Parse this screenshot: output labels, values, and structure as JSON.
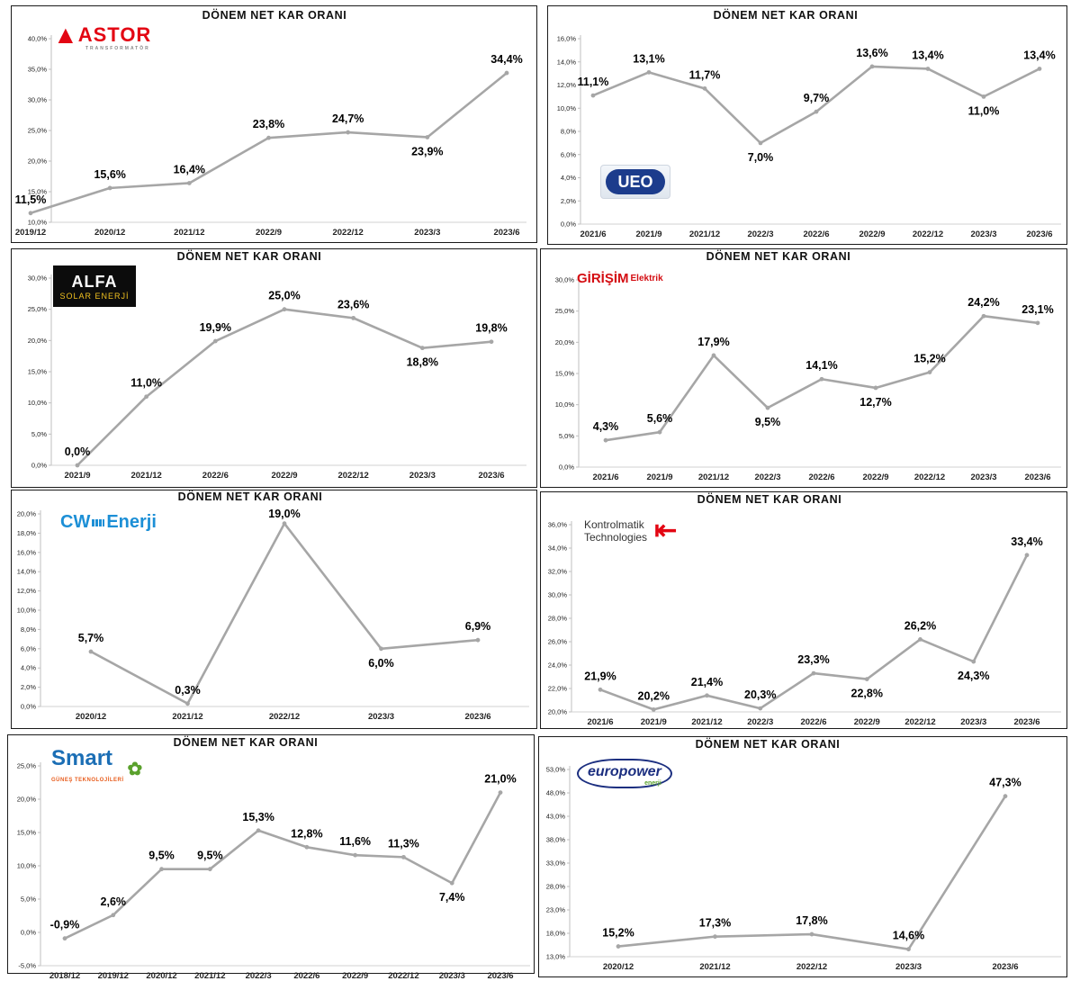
{
  "chart_data": [
    {
      "type": "line",
      "title": "DÖNEM NET KAR ORANI",
      "logo": "ASTOR",
      "logo_sub": "TRANSFORMATÖR",
      "categories": [
        "2019/12",
        "2020/12",
        "2021/12",
        "2022/9",
        "2022/12",
        "2023/3",
        "2023/6"
      ],
      "values": [
        11.5,
        15.6,
        16.4,
        23.8,
        24.7,
        23.9,
        34.4
      ],
      "labels": [
        "11,5%",
        "15,6%",
        "16,4%",
        "23,8%",
        "24,7%",
        "23,9%",
        "34,4%"
      ],
      "yticks": [
        "10,0%",
        "15,0%",
        "20,0%",
        "25,0%",
        "30,0%",
        "35,0%",
        "40,0%"
      ],
      "ylim": [
        10,
        40
      ],
      "line_color": "#a6a6a6"
    },
    {
      "type": "line",
      "title": "DÖNEM NET KAR ORANI",
      "logo": "UEO",
      "categories": [
        "2021/6",
        "2021/9",
        "2021/12",
        "2022/3",
        "2022/6",
        "2022/9",
        "2022/12",
        "2023/3",
        "2023/6"
      ],
      "values": [
        11.1,
        13.1,
        11.7,
        7.0,
        9.7,
        13.6,
        13.4,
        11.0,
        13.4
      ],
      "labels": [
        "11,1%",
        "13,1%",
        "11,7%",
        "7,0%",
        "9,7%",
        "13,6%",
        "13,4%",
        "11,0%",
        "13,4%"
      ],
      "yticks": [
        "0,0%",
        "2,0%",
        "4,0%",
        "6,0%",
        "8,0%",
        "10,0%",
        "12,0%",
        "14,0%",
        "16,0%"
      ],
      "ylim": [
        0,
        16
      ],
      "line_color": "#a6a6a6"
    },
    {
      "type": "line",
      "title": "DÖNEM NET KAR ORANI",
      "logo": "ALFA",
      "logo_sub": "SOLAR ENERJİ",
      "categories": [
        "2021/9",
        "2021/12",
        "2022/6",
        "2022/9",
        "2022/12",
        "2023/3",
        "2023/6"
      ],
      "values": [
        0.0,
        11.0,
        19.9,
        25.0,
        23.6,
        18.8,
        19.8
      ],
      "labels": [
        "0,0%",
        "11,0%",
        "19,9%",
        "25,0%",
        "23,6%",
        "18,8%",
        "19,8%"
      ],
      "yticks": [
        "0,0%",
        "5,0%",
        "10,0%",
        "15,0%",
        "20,0%",
        "25,0%",
        "30,0%"
      ],
      "ylim": [
        0,
        30
      ],
      "line_color": "#a6a6a6"
    },
    {
      "type": "line",
      "title": "DÖNEM NET KAR ORANI",
      "logo": "GİRİŞİM",
      "logo_sub": "Elektrik",
      "categories": [
        "2021/6",
        "2021/9",
        "2021/12",
        "2022/3",
        "2022/6",
        "2022/9",
        "2022/12",
        "2023/3",
        "2023/6"
      ],
      "values": [
        4.3,
        5.6,
        17.9,
        9.5,
        14.1,
        12.7,
        15.2,
        24.2,
        23.1
      ],
      "labels": [
        "4,3%",
        "5,6%",
        "17,9%",
        "9,5%",
        "14,1%",
        "12,7%",
        "15,2%",
        "24,2%",
        "23,1%"
      ],
      "yticks": [
        "0,0%",
        "5,0%",
        "10,0%",
        "15,0%",
        "20,0%",
        "25,0%",
        "30,0%"
      ],
      "ylim": [
        0,
        30
      ],
      "line_color": "#a6a6a6"
    },
    {
      "type": "line",
      "title": "DÖNEM NET KAR ORANI",
      "logo": "CW",
      "logo_sub": "Enerji",
      "categories": [
        "2020/12",
        "2021/12",
        "2022/12",
        "2023/3",
        "2023/6"
      ],
      "values": [
        5.7,
        0.3,
        19.0,
        6.0,
        6.9
      ],
      "labels": [
        "5,7%",
        "0,3%",
        "19,0%",
        "6,0%",
        "6,9%"
      ],
      "yticks": [
        "0,0%",
        "2,0%",
        "4,0%",
        "6,0%",
        "8,0%",
        "10,0%",
        "12,0%",
        "14,0%",
        "16,0%",
        "18,0%",
        "20,0%"
      ],
      "ylim": [
        0,
        20
      ],
      "line_color": "#a6a6a6"
    },
    {
      "type": "line",
      "title": "DÖNEM NET KAR ORANI",
      "logo": "Kontrolmatik",
      "logo_sub": "Technologies",
      "categories": [
        "2021/6",
        "2021/9",
        "2021/12",
        "2022/3",
        "2022/6",
        "2022/9",
        "2022/12",
        "2023/3",
        "2023/6"
      ],
      "values": [
        21.9,
        20.2,
        21.4,
        20.3,
        23.3,
        22.8,
        26.2,
        24.3,
        33.4
      ],
      "labels": [
        "21,9%",
        "20,2%",
        "21,4%",
        "20,3%",
        "23,3%",
        "22,8%",
        "26,2%",
        "24,3%",
        "33,4%"
      ],
      "yticks": [
        "20,0%",
        "22,0%",
        "24,0%",
        "26,0%",
        "28,0%",
        "30,0%",
        "32,0%",
        "34,0%",
        "36,0%"
      ],
      "ylim": [
        20,
        36
      ],
      "line_color": "#a6a6a6"
    },
    {
      "type": "line",
      "title": "DÖNEM NET KAR ORANI",
      "logo": "Smart",
      "logo_sub": "GÜNEŞ TEKNOLOJİLERİ",
      "categories": [
        "2018/12",
        "2019/12",
        "2020/12",
        "2021/12",
        "2022/3",
        "2022/6",
        "2022/9",
        "2022/12",
        "2023/3",
        "2023/6"
      ],
      "values": [
        -0.9,
        2.6,
        9.5,
        9.5,
        15.3,
        12.8,
        11.6,
        11.3,
        7.4,
        21.0
      ],
      "labels": [
        "-0,9%",
        "2,6%",
        "9,5%",
        "9,5%",
        "15,3%",
        "12,8%",
        "11,6%",
        "11,3%",
        "7,4%",
        "21,0%"
      ],
      "yticks": [
        "-5,0%",
        "0,0%",
        "5,0%",
        "10,0%",
        "15,0%",
        "20,0%",
        "25,0%"
      ],
      "ylim": [
        -5,
        25
      ],
      "line_color": "#a6a6a6"
    },
    {
      "type": "line",
      "title": "DÖNEM NET KAR ORANI",
      "logo": "europower",
      "logo_sub": "enerji",
      "categories": [
        "2020/12",
        "2021/12",
        "2022/12",
        "2023/3",
        "2023/6"
      ],
      "values": [
        15.2,
        17.3,
        17.8,
        14.6,
        47.3
      ],
      "labels": [
        "15,2%",
        "17,3%",
        "17,8%",
        "14,6%",
        "47,3%"
      ],
      "yticks": [
        "13,0%",
        "18,0%",
        "23,0%",
        "28,0%",
        "33,0%",
        "38,0%",
        "43,0%",
        "48,0%",
        "53,0%"
      ],
      "ylim": [
        13,
        53
      ],
      "line_color": "#a6a6a6"
    }
  ]
}
